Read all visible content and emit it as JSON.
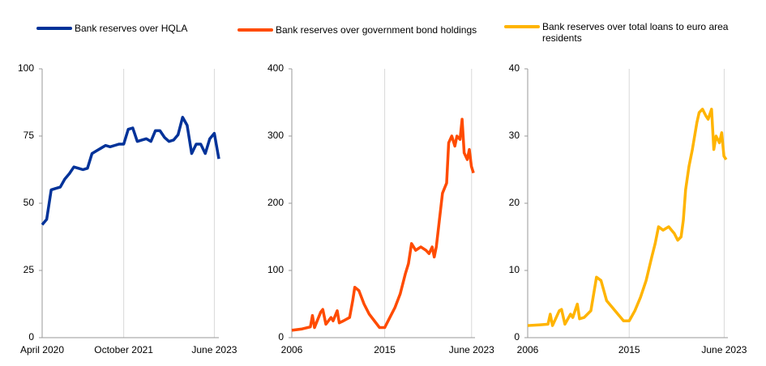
{
  "chart_data": [
    {
      "type": "line",
      "x": [
        "2020-04",
        "2020-05",
        "2020-06",
        "2020-07",
        "2020-08",
        "2020-09",
        "2020-10",
        "2020-11",
        "2020-12",
        "2021-01",
        "2021-02",
        "2021-03",
        "2021-04",
        "2021-05",
        "2021-06",
        "2021-07",
        "2021-08",
        "2021-09",
        "2021-10",
        "2021-11",
        "2021-12",
        "2022-01",
        "2022-02",
        "2022-03",
        "2022-04",
        "2022-05",
        "2022-06",
        "2022-07",
        "2022-08",
        "2022-09",
        "2022-10",
        "2022-11",
        "2022-12",
        "2023-01",
        "2023-02",
        "2023-03",
        "2023-04",
        "2023-05",
        "2023-06",
        "2023-07"
      ],
      "series": [
        {
          "name": "Bank reserves over HQLA",
          "color": "#003299",
          "values": [
            42,
            44,
            55,
            55.5,
            56,
            59,
            61,
            63.5,
            63,
            62.5,
            63,
            68.5,
            69.5,
            70.5,
            71.5,
            71,
            71.5,
            72,
            72,
            77.5,
            78,
            73,
            73.5,
            74,
            73,
            77,
            77,
            74.5,
            73,
            73.5,
            75.5,
            82,
            79,
            68.5,
            72,
            72,
            68.5,
            74,
            76,
            66.5
          ]
        }
      ],
      "xlim": [
        "2020-04",
        "2023-07"
      ],
      "xticks": [
        {
          "value": "2020-04",
          "label": "April 2020"
        },
        {
          "value": "2021-10",
          "label": "October 2021"
        },
        {
          "value": "2023-06",
          "label": "June 2023"
        }
      ],
      "ylim": [
        0,
        100
      ],
      "yticks": [
        0,
        25,
        50,
        75,
        100
      ],
      "grid": true
    },
    {
      "type": "line",
      "x": [
        2006,
        2007,
        2007.8,
        2008,
        2008.2,
        2008.8,
        2009,
        2009.3,
        2009.8,
        2010,
        2010.4,
        2010.6,
        2011,
        2011.6,
        2011.9,
        2012.1,
        2012.5,
        2013,
        2013.5,
        2014,
        2014.5,
        2015,
        2015.5,
        2016,
        2016.5,
        2017,
        2017.3,
        2017.6,
        2018,
        2018.5,
        2019,
        2019.3,
        2019.6,
        2019.8,
        2020,
        2020.3,
        2020.6,
        2021,
        2021.2,
        2021.5,
        2021.8,
        2022,
        2022.3,
        2022.5,
        2022.7,
        2023,
        2023.2,
        2023.4,
        2023.6
      ],
      "series": [
        {
          "name": "Bank reserves over government bond holdings",
          "color": "#ff4b00",
          "values": [
            11,
            13,
            16,
            33,
            15,
            38,
            42,
            20,
            30,
            25,
            40,
            22,
            25,
            30,
            55,
            75,
            70,
            50,
            35,
            25,
            15,
            15,
            30,
            45,
            65,
            95,
            110,
            140,
            130,
            135,
            130,
            125,
            135,
            120,
            135,
            175,
            215,
            230,
            290,
            300,
            285,
            300,
            295,
            325,
            275,
            265,
            280,
            255,
            245
          ]
        }
      ],
      "xlim": [
        2006,
        2023.75
      ],
      "xticks": [
        2006,
        2015,
        {
          "value": 2023.42,
          "label": "June 2023"
        }
      ],
      "ylim": [
        0,
        400
      ],
      "yticks": [
        0,
        100,
        200,
        300,
        400
      ],
      "grid": true
    },
    {
      "type": "line",
      "x": [
        2006,
        2007,
        2007.8,
        2008,
        2008.2,
        2008.8,
        2009,
        2009.3,
        2009.8,
        2010,
        2010.4,
        2010.6,
        2011,
        2011.6,
        2011.9,
        2012.1,
        2012.5,
        2013,
        2013.5,
        2014,
        2014.5,
        2015,
        2015.5,
        2016,
        2016.5,
        2017,
        2017.3,
        2017.6,
        2018,
        2018.5,
        2019,
        2019.3,
        2019.6,
        2019.8,
        2020,
        2020.3,
        2020.6,
        2021,
        2021.2,
        2021.5,
        2021.8,
        2022,
        2022.3,
        2022.5,
        2022.7,
        2023,
        2023.2,
        2023.4,
        2023.6
      ],
      "series": [
        {
          "name": "Bank reserves over total loans to euro area residents",
          "color": "#ffb400",
          "values": [
            1.8,
            1.9,
            2,
            3.5,
            1.8,
            4,
            4.2,
            2,
            3.5,
            3,
            5,
            2.8,
            3,
            4,
            7,
            9,
            8.5,
            5.5,
            4.5,
            3.5,
            2.5,
            2.5,
            4,
            6,
            8.5,
            12,
            14,
            16.5,
            16,
            16.5,
            15.5,
            14.5,
            15,
            17.5,
            22,
            25.5,
            28,
            32,
            33.5,
            34,
            33,
            32.5,
            34,
            28,
            30,
            29,
            30.5,
            27,
            26.5
          ]
        }
      ],
      "xlim": [
        2006,
        2023.75
      ],
      "xticks": [
        2006,
        2015,
        {
          "value": 2023.42,
          "label": "June 2023"
        }
      ],
      "ylim": [
        0,
        40
      ],
      "yticks": [
        0,
        10,
        20,
        30,
        40
      ],
      "grid": true
    }
  ]
}
